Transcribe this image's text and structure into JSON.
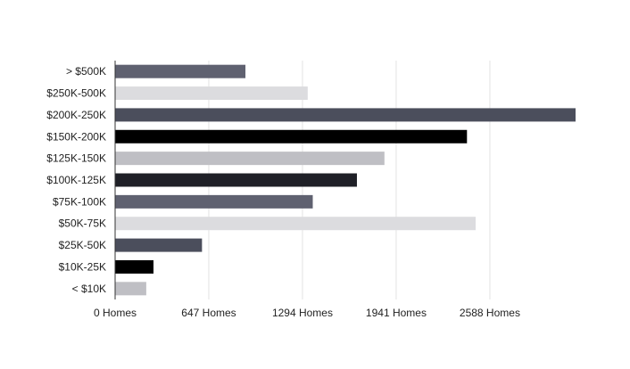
{
  "chart_data": {
    "type": "bar",
    "orientation": "horizontal",
    "categories": [
      "> $500K",
      "$250K-500K",
      "$200K-250K",
      "$150K-200K",
      "$125K-150K",
      "$100K-125K",
      "$75K-100K",
      "$50K-75K",
      "$25K-50K",
      "$10K-25K",
      "< $10K"
    ],
    "values": [
      900,
      1330,
      3180,
      2430,
      1860,
      1670,
      1365,
      2490,
      600,
      265,
      215
    ],
    "colors": [
      "#5f6170",
      "#dcdcdf",
      "#4b4e5c",
      "#000000",
      "#bfbfc4",
      "#1f2027",
      "#5f6170",
      "#dcdcdf",
      "#4b4e5c",
      "#000000",
      "#bfbfc4"
    ],
    "x_ticks": [
      {
        "value": 0,
        "label": "0 Homes"
      },
      {
        "value": 647,
        "label": "647 Homes"
      },
      {
        "value": 1294,
        "label": "1294 Homes"
      },
      {
        "value": 1941,
        "label": "1941 Homes"
      },
      {
        "value": 2588,
        "label": "2588 Homes"
      }
    ],
    "xlim": [
      0,
      3180
    ],
    "grid": true,
    "title": "",
    "xlabel": "",
    "ylabel": ""
  }
}
